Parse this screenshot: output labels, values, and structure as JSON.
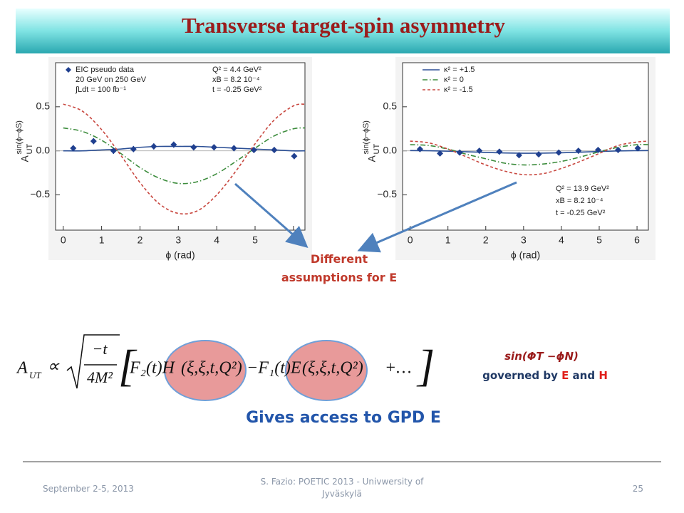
{
  "title": "Transverse target-spin asymmetry",
  "chart_data": [
    {
      "type": "line",
      "xlabel": "ϕ (rad)",
      "ylabel": {
        "main": "A",
        "sub": "UT",
        "sup": "sin(ϕ−ϕS)"
      },
      "xlim": [
        -0.2,
        6.3
      ],
      "ylim": [
        -0.9,
        1.0
      ],
      "xticks": [
        0,
        1,
        2,
        3,
        4,
        5,
        6
      ],
      "yticks": [
        {
          "value": -0.5,
          "label": "−0.5"
        },
        {
          "value": 0,
          "label": "0.0"
        },
        0.5
      ],
      "x": [
        0,
        0.5,
        1,
        1.5,
        2,
        2.5,
        3,
        3.5,
        4,
        4.5,
        5,
        5.5,
        6,
        6.3
      ],
      "series": [
        {
          "color": "#2b4f95",
          "style": "solid",
          "values": [
            0,
            0,
            0.01,
            0.02,
            0.04,
            0.05,
            0.05,
            0.05,
            0.04,
            0.03,
            0.02,
            0.01,
            0,
            0
          ]
        },
        {
          "color": "#3c8c3c",
          "style": "dashdot",
          "values": [
            0.26,
            0.22,
            0.12,
            -0.03,
            -0.19,
            -0.31,
            -0.37,
            -0.35,
            -0.26,
            -0.12,
            0.03,
            0.17,
            0.25,
            0.26
          ]
        },
        {
          "color": "#c8463e",
          "style": "dashed",
          "values": [
            0.53,
            0.45,
            0.24,
            -0.05,
            -0.36,
            -0.6,
            -0.71,
            -0.68,
            -0.5,
            -0.23,
            0.08,
            0.35,
            0.51,
            0.53
          ]
        }
      ],
      "points": {
        "name": "EIC pseudo data",
        "color": "#1f3f8f",
        "x": [
          0.26,
          0.79,
          1.31,
          1.83,
          2.36,
          2.88,
          3.4,
          3.93,
          4.45,
          4.97,
          5.5,
          6.02
        ],
        "values": [
          0.03,
          0.11,
          0.0,
          0.02,
          0.05,
          0.07,
          0.04,
          0.04,
          0.03,
          0.01,
          0.01,
          -0.06
        ],
        "errors": [
          0.035,
          0.035,
          0.035,
          0.035,
          0.035,
          0.035,
          0.035,
          0.035,
          0.035,
          0.035,
          0.035,
          0.035
        ]
      },
      "annotations": [
        "20 GeV on 250 GeV",
        "∫Ldt = 100 fb⁻¹"
      ],
      "notes": [
        "Q² = 4.4 GeV²",
        "xB = 8.2 10⁻⁴",
        "t = -0.25 GeV²"
      ]
    },
    {
      "type": "line",
      "xlabel": "ϕ (rad)",
      "ylabel": {
        "main": "A",
        "sub": "UT",
        "sup": "sin(ϕ−ϕS)"
      },
      "xlim": [
        -0.2,
        6.3
      ],
      "ylim": [
        -0.9,
        1.0
      ],
      "xticks": [
        0,
        1,
        2,
        3,
        4,
        5,
        6
      ],
      "yticks": [
        {
          "value": -0.5,
          "label": "−0.5"
        },
        {
          "value": 0,
          "label": "0.0"
        },
        0.5
      ],
      "x": [
        0,
        0.5,
        1,
        1.5,
        2,
        2.5,
        3,
        3.5,
        4,
        4.5,
        5,
        5.5,
        6,
        6.3
      ],
      "series": [
        {
          "name": "κ² = +1.5",
          "color": "#2b4f95",
          "style": "solid",
          "values": [
            0.003,
            0.001,
            -0.004,
            -0.011,
            -0.018,
            -0.024,
            -0.027,
            -0.026,
            -0.022,
            -0.015,
            -0.008,
            -0.001,
            0.002,
            0.003
          ]
        },
        {
          "name": "κ² = 0",
          "color": "#3c8c3c",
          "style": "dashdot",
          "values": [
            0.07,
            0.06,
            0.02,
            -0.04,
            -0.09,
            -0.14,
            -0.16,
            -0.15,
            -0.12,
            -0.07,
            -0.01,
            0.04,
            0.07,
            0.07
          ]
        },
        {
          "name": "κ² = -1.5",
          "color": "#c8463e",
          "style": "dashed",
          "values": [
            0.11,
            0.09,
            0.02,
            -0.07,
            -0.16,
            -0.23,
            -0.27,
            -0.26,
            -0.2,
            -0.12,
            -0.03,
            0.06,
            0.1,
            0.11
          ]
        }
      ],
      "points": {
        "color": "#1f3f8f",
        "x": [
          0.26,
          0.79,
          1.31,
          1.83,
          2.36,
          2.88,
          3.4,
          3.93,
          4.45,
          4.97,
          5.5,
          6.02
        ],
        "values": [
          0.02,
          -0.03,
          -0.02,
          0.0,
          -0.01,
          -0.05,
          -0.04,
          -0.02,
          0.0,
          0.01,
          0.01,
          0.03
        ],
        "errors": [
          0.03,
          0.03,
          0.03,
          0.03,
          0.03,
          0.03,
          0.03,
          0.03,
          0.03,
          0.03,
          0.03,
          0.03
        ]
      },
      "notes": [
        "Q² = 13.9 GeV²",
        "xB = 8.2 10⁻⁴",
        "t = -0.25 GeV²"
      ]
    }
  ],
  "callout": [
    "Different",
    "assumptions for E"
  ],
  "formula": {
    "a": "A",
    "sub": "UT",
    "prop": "∝",
    "num": "−t",
    "den": "4M²",
    "term1": "F₂(t)H",
    "args1": "(ξ,ξ,t,Q²)",
    "term2": "−F₁(t)E",
    "args2": "(ξ,ξ,t,Q²)",
    "rest": "+…"
  },
  "note": {
    "line1": "sin(ΦT −ϕN)",
    "line2": [
      "governed by ",
      "E",
      " and ",
      "H"
    ]
  },
  "highlight": "Gives access to GPD E",
  "footer": {
    "date": "September 2-5, 2013",
    "center": [
      "S. Fazio: POETIC 2013 - Univwersity of",
      "Jyväskylä"
    ],
    "page": "25"
  }
}
